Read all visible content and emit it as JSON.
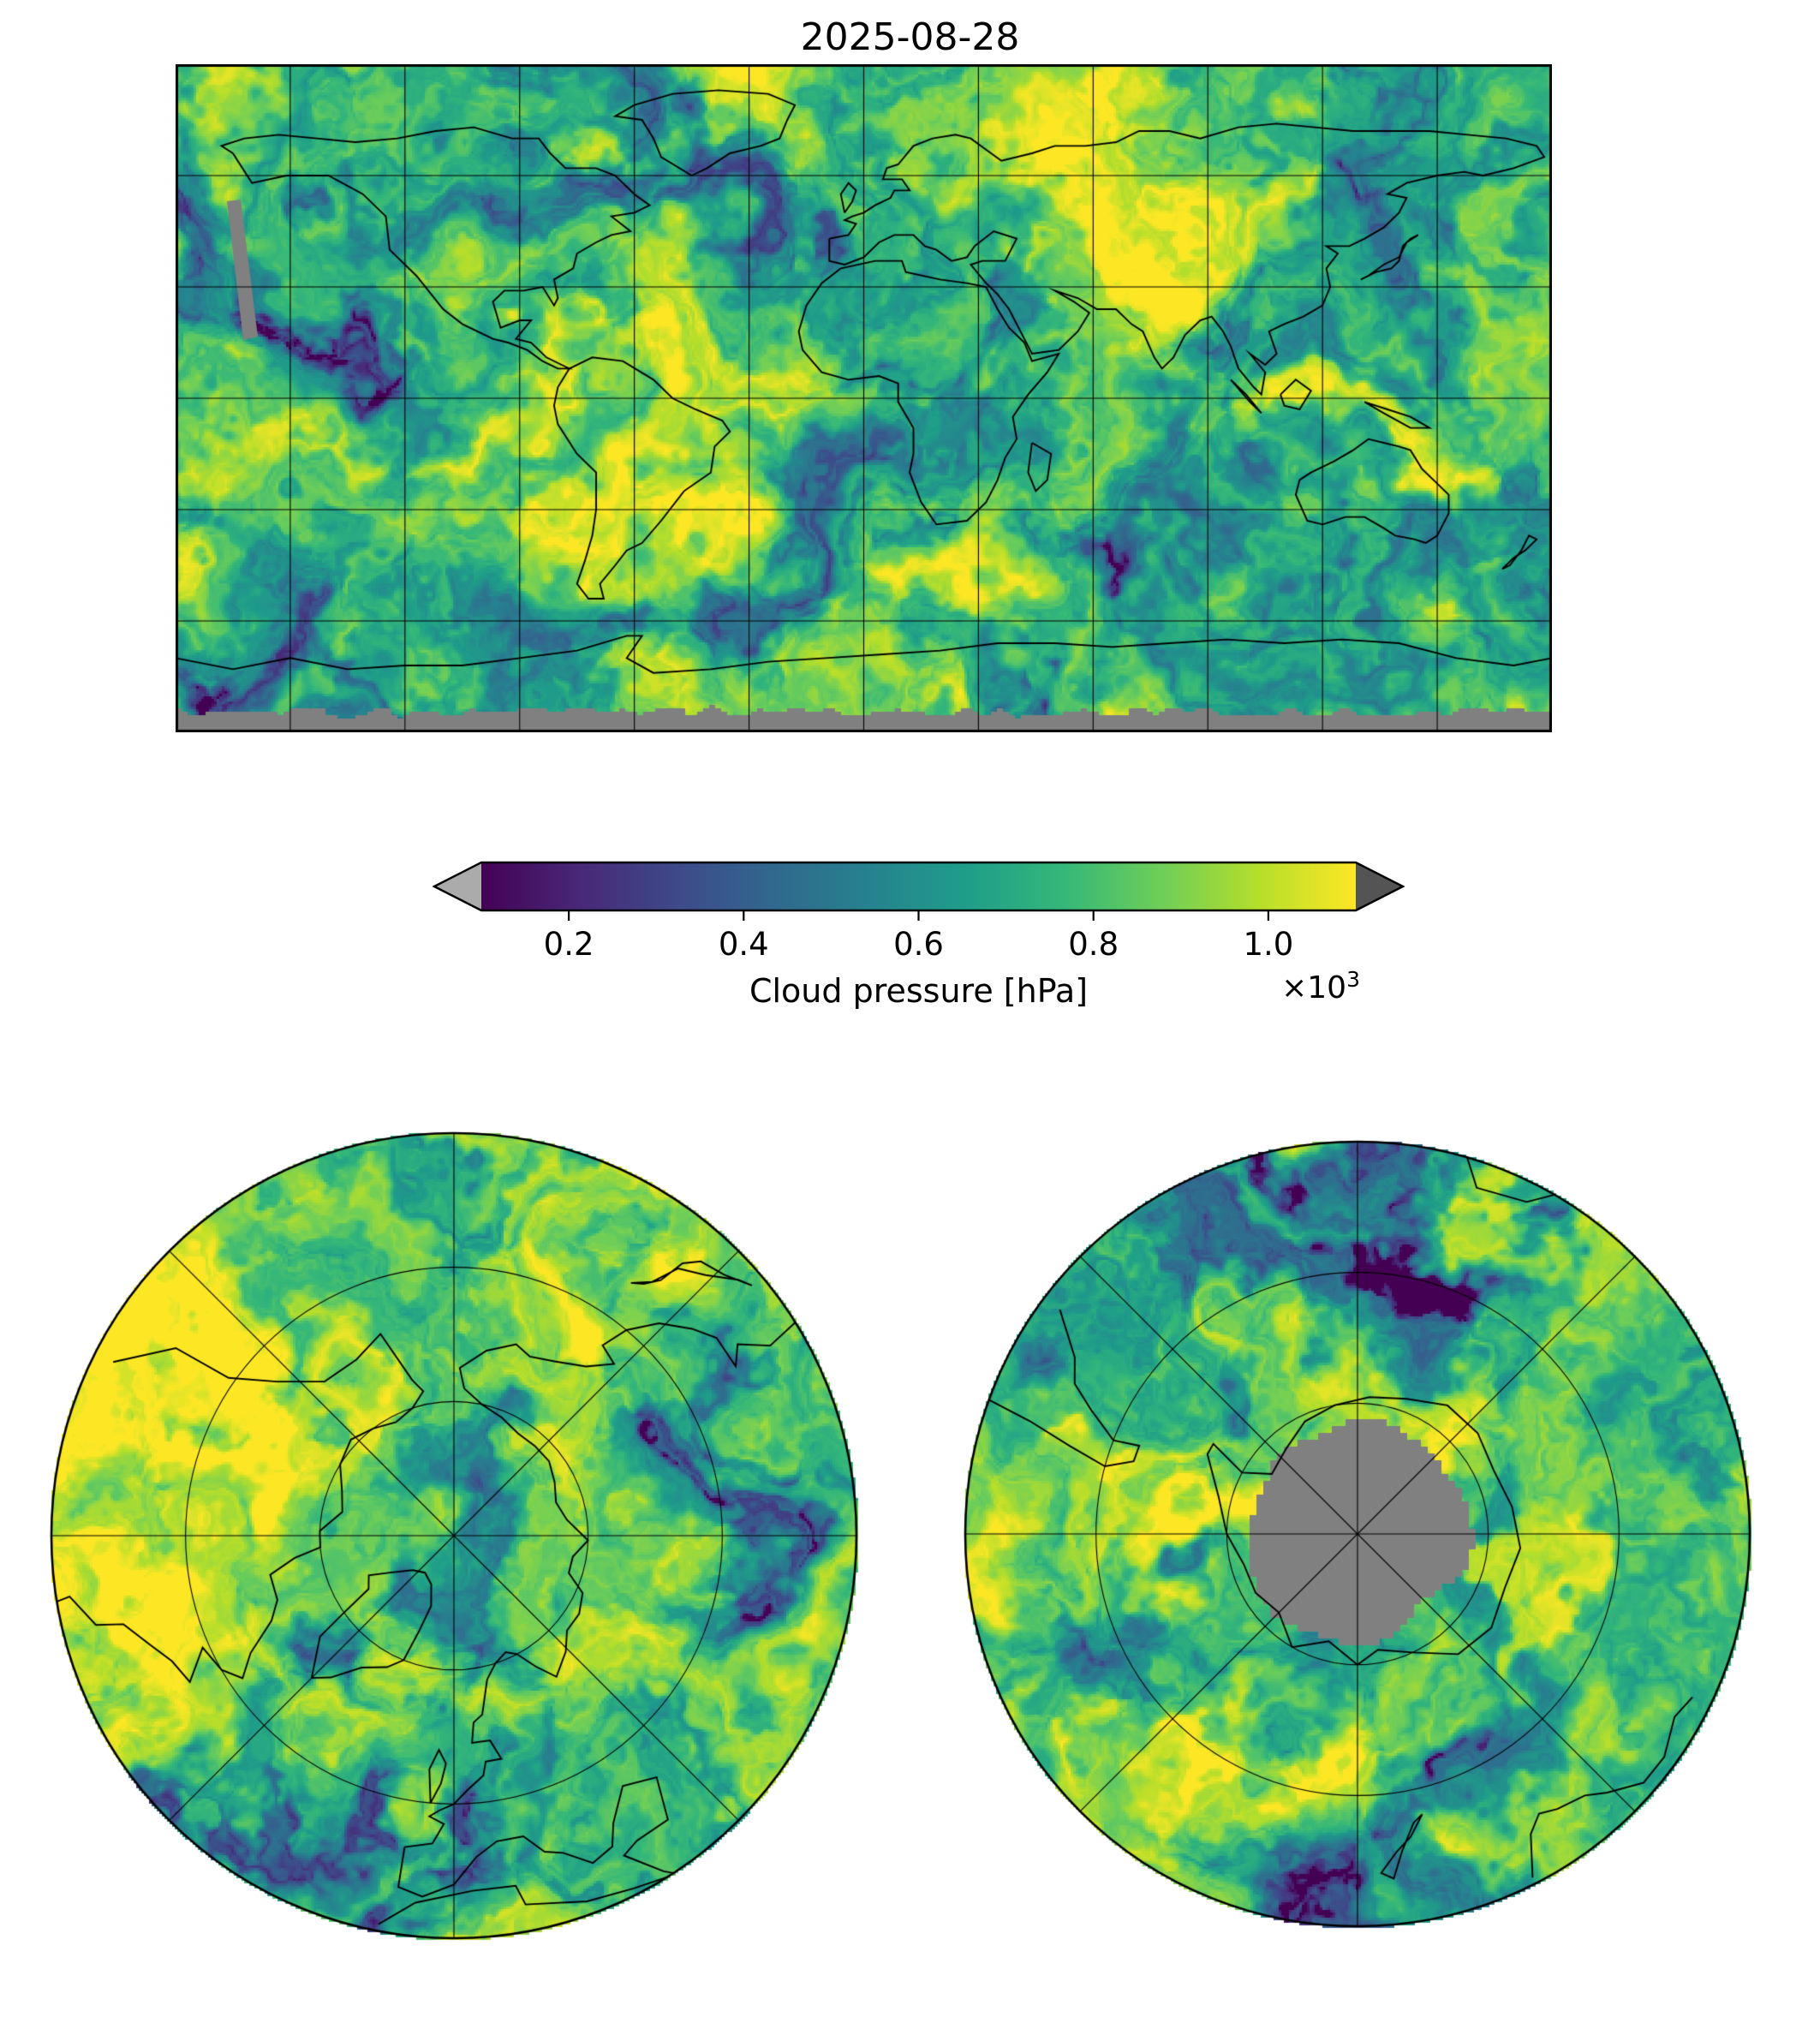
{
  "figure": {
    "background": "#ffffff"
  },
  "chart_data": {
    "type": "heatmap",
    "title": "2025-08-28",
    "variable": "Cloud pressure",
    "units": "hPa",
    "colormap": "viridis",
    "colormap_stops": [
      "#440154",
      "#482878",
      "#3e4989",
      "#31688e",
      "#26828e",
      "#1f9e89",
      "#35b779",
      "#6ece58",
      "#b5de2b",
      "#fde725"
    ],
    "no_data_color": "#808080",
    "colorbar": {
      "label": "Cloud pressure [hPa]",
      "ticks": [
        "0.2",
        "0.4",
        "0.6",
        "0.8",
        "1.0"
      ],
      "tick_values": [
        0.2,
        0.4,
        0.6,
        0.8,
        1.0
      ],
      "range": [
        0.1,
        1.1
      ],
      "multiplier_base": "×10",
      "multiplier_exponent": "3",
      "extend_under_color": "#ababab",
      "extend_over_color": "#545454"
    },
    "panels": [
      {
        "id": "global",
        "projection": "equirectangular",
        "extent": {
          "lon": [
            -180,
            180
          ],
          "lat": [
            -90,
            90
          ]
        },
        "gridlines_deg": 30
      },
      {
        "id": "north-polar",
        "projection": "polar-stereographic-north",
        "boundary_lat": 30,
        "lat_circles": [
          70,
          50
        ],
        "lon_spokes_deg": 45
      },
      {
        "id": "south-polar",
        "projection": "polar-stereographic-south",
        "boundary_lat": -30,
        "lat_circles": [
          -70,
          -50
        ],
        "lon_spokes_deg": 45
      }
    ]
  }
}
